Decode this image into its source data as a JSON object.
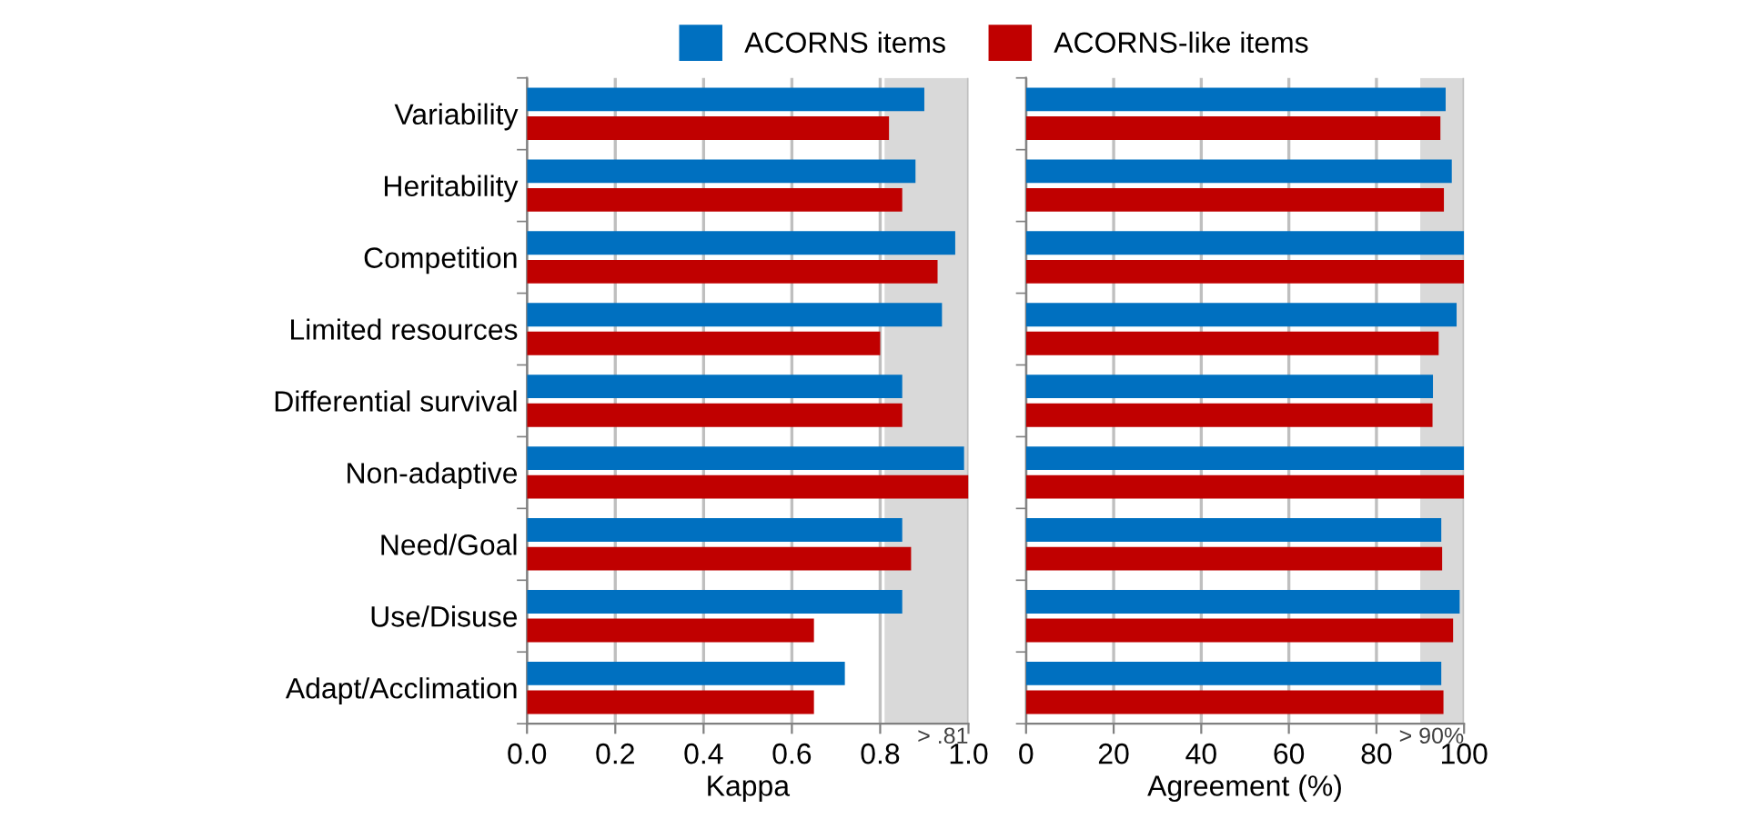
{
  "chart_data": [
    {
      "type": "bar",
      "orientation": "horizontal",
      "xlabel": "Kappa",
      "categories": [
        "Variability",
        "Heritability",
        "Competition",
        "Limited resources",
        "Differential survival",
        "Non-adaptive",
        "Need/Goal",
        "Use/Disuse",
        "Adapt/Acclimation"
      ],
      "series": [
        {
          "name": "ACORNS items",
          "color": "#0070c0",
          "values": [
            0.9,
            0.88,
            0.97,
            0.94,
            0.85,
            0.99,
            0.85,
            0.85,
            0.72
          ]
        },
        {
          "name": "ACORNS-like items",
          "color": "#c00000",
          "values": [
            0.82,
            0.85,
            0.93,
            0.8,
            0.85,
            1.0,
            0.87,
            0.65,
            0.65
          ]
        }
      ],
      "xlim": [
        0,
        1.0
      ],
      "xticks": [
        {
          "value": 0,
          "label": "0.0"
        },
        0.2,
        0.4,
        0.6,
        0.8,
        {
          "value": 1.0,
          "label": "1.0"
        }
      ],
      "grid": "x",
      "legend": "top",
      "bands": [
        {
          "axis": "x",
          "from": 0.81,
          "to": 1.0,
          "label": "> .81",
          "color": "#d9d9d9"
        }
      ]
    },
    {
      "type": "bar",
      "orientation": "horizontal",
      "xlabel": "Agreement (%)",
      "categories": [
        null,
        null,
        null,
        null,
        null,
        null,
        null,
        null,
        null
      ],
      "series": [
        {
          "color": "#0070c0",
          "values": [
            95.8,
            97.2,
            100,
            98.3,
            92.9,
            100,
            94.8,
            99,
            94.8
          ]
        },
        {
          "color": "#c00000",
          "values": [
            94.6,
            95.4,
            100,
            94.2,
            92.8,
            100,
            95,
            97.5,
            95.3
          ]
        }
      ],
      "xlim": [
        0,
        100
      ],
      "xticks": [
        0,
        20,
        40,
        60,
        80,
        100
      ],
      "grid": "x",
      "tick_labels": "x",
      "bands": [
        {
          "axis": "x",
          "from": 90,
          "to": 100,
          "label": "> 90%",
          "color": "#d9d9d9"
        }
      ]
    }
  ]
}
